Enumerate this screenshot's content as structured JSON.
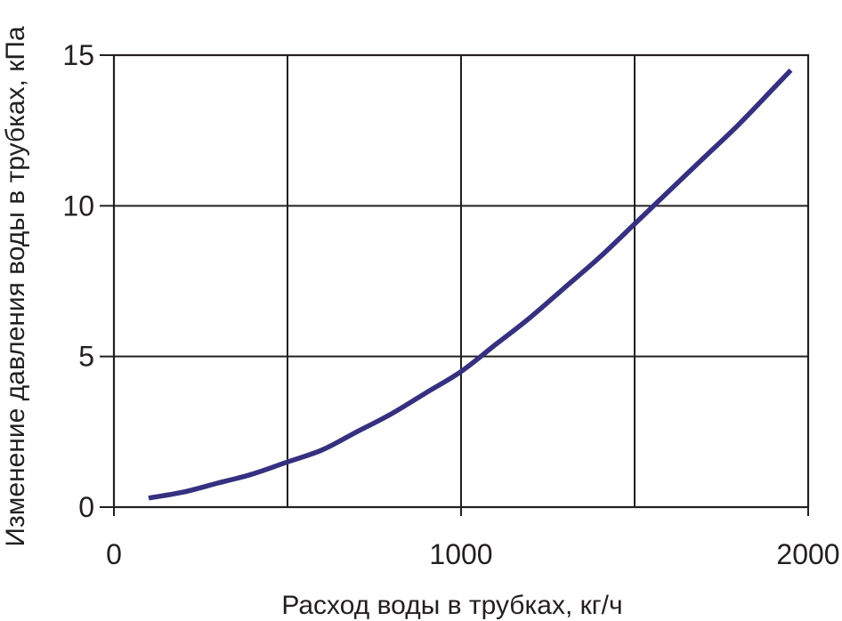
{
  "chart_data": {
    "type": "line",
    "title": "",
    "xlabel": "Расход воды в трубках, кг/ч",
    "ylabel": "Изменение давления воды в трубках, кПа",
    "xlim": [
      0,
      2000
    ],
    "ylim": [
      0,
      15
    ],
    "x_ticks": [
      {
        "value": 0,
        "label": "0"
      },
      {
        "value": 1000,
        "label": "1000"
      },
      {
        "value": 2000,
        "label": "2000"
      }
    ],
    "x_gridlines": [
      500,
      1000,
      1500
    ],
    "y_ticks": [
      {
        "value": 0,
        "label": "0"
      },
      {
        "value": 5,
        "label": "5"
      },
      {
        "value": 10,
        "label": "10"
      },
      {
        "value": 15,
        "label": "15"
      }
    ],
    "grid": true,
    "legend": "none",
    "colors": {
      "series": "#35307f",
      "axes": "#231f20"
    },
    "series": [
      {
        "x": [
          100,
          200,
          300,
          400,
          500,
          600,
          700,
          800,
          900,
          1000,
          1100,
          1200,
          1300,
          1400,
          1500,
          1600,
          1700,
          1800,
          1900,
          1950
        ],
        "y": [
          0.3,
          0.5,
          0.8,
          1.1,
          1.5,
          1.9,
          2.5,
          3.1,
          3.8,
          4.5,
          5.4,
          6.3,
          7.3,
          8.3,
          9.4,
          10.5,
          11.6,
          12.7,
          13.9,
          14.5
        ]
      }
    ]
  }
}
